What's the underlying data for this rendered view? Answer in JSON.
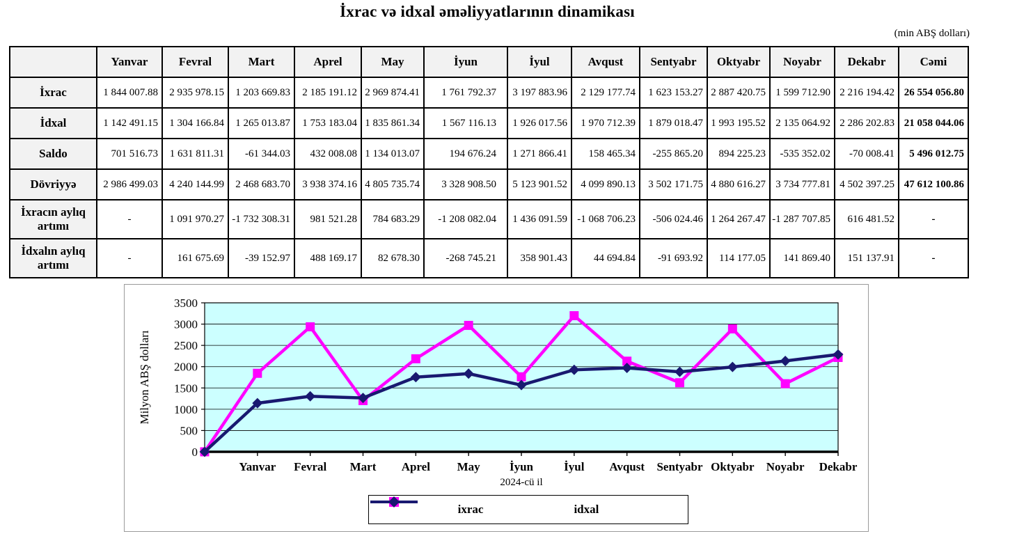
{
  "page": {
    "title": "İxrac və idxal əməliyyatlarının dinamikası",
    "unit_note": "(min ABŞ dolları)"
  },
  "table": {
    "columns": [
      "",
      "Yanvar",
      "Fevral",
      "Mart",
      "Aprel",
      "May",
      "İyun",
      "İyul",
      "Avqust",
      "Sentyabr",
      "Oktyabr",
      "Noyabr",
      "Dekabr",
      "Cəmi"
    ],
    "rows": [
      {
        "label": "İxrac",
        "values": [
          "1 844 007.88",
          "2 935 978.15",
          "1 203 669.83",
          "2 185 191.12",
          "2 969 874.41",
          "1 761 792.37",
          "3 197 883.96",
          "2 129 177.74",
          "1 623 153.27",
          "2 887 420.75",
          "1 599 712.90",
          "2 216 194.42",
          "26 554 056.80"
        ]
      },
      {
        "label": "İdxal",
        "values": [
          "1 142 491.15",
          "1 304 166.84",
          "1 265 013.87",
          "1 753 183.04",
          "1 835 861.34",
          "1 567 116.13",
          "1 926 017.56",
          "1 970 712.39",
          "1 879 018.47",
          "1 993 195.52",
          "2 135 064.92",
          "2 286 202.83",
          "21 058 044.06"
        ]
      },
      {
        "label": "Saldo",
        "values": [
          "701 516.73",
          "1 631 811.31",
          "-61 344.03",
          "432 008.08",
          "1 134 013.07",
          "194 676.24",
          "1 271 866.41",
          "158 465.34",
          "-255 865.20",
          "894 225.23",
          "-535 352.02",
          "-70 008.41",
          "5 496 012.75"
        ]
      },
      {
        "label": "Dövriyyə",
        "values": [
          "2 986 499.03",
          "4 240 144.99",
          "2 468 683.70",
          "3 938 374.16",
          "4 805 735.74",
          "3 328 908.50",
          "5 123 901.52",
          "4 099 890.13",
          "3 502 171.75",
          "4 880 616.27",
          "3 734 777.81",
          "4 502 397.25",
          "47 612 100.86"
        ]
      },
      {
        "label": "İxracın aylıq artımı",
        "tall": true,
        "values": [
          "-",
          "1 091 970.27",
          "-1 732 308.31",
          "981 521.28",
          "784 683.29",
          "-1 208 082.04",
          "1 436 091.59",
          "-1 068 706.23",
          "-506 024.46",
          "1 264 267.47",
          "-1 287 707.85",
          "616 481.52",
          "-"
        ]
      },
      {
        "label": "İdxalın aylıq artımı",
        "tall": true,
        "values": [
          "-",
          "161 675.69",
          "-39 152.97",
          "488 169.17",
          "82 678.30",
          "-268 745.21",
          "358 901.43",
          "44 694.84",
          "-91 693.92",
          "114 177.05",
          "141 869.40",
          "151 137.91",
          "-"
        ]
      }
    ]
  },
  "chart_data": {
    "type": "line",
    "title": "",
    "xlabel": "2024-cü il",
    "ylabel": "Milyon ABŞ dolları",
    "ylim": [
      0,
      3500
    ],
    "ytick_step": 500,
    "grid": true,
    "plot_bg": "#ccffff",
    "legend_position": "bottom",
    "categories": [
      "",
      "Yanvar",
      "Fevral",
      "Mart",
      "Aprel",
      "May",
      "İyun",
      "İyul",
      "Avqust",
      "Sentyabr",
      "Oktyabr",
      "Noyabr",
      "Dekabr"
    ],
    "series": [
      {
        "name": "ixrac",
        "color": "#ff00ff",
        "marker": "square",
        "values": [
          0,
          1844.0,
          2936.0,
          1203.7,
          2185.2,
          2969.9,
          1761.8,
          3197.9,
          2129.2,
          1623.2,
          2887.4,
          1599.7,
          2216.2
        ]
      },
      {
        "name": "idxal",
        "color": "#191970",
        "marker": "diamond",
        "values": [
          0,
          1142.5,
          1304.2,
          1265.0,
          1753.2,
          1835.9,
          1567.1,
          1926.0,
          1970.7,
          1879.0,
          1993.2,
          2135.1,
          2286.2
        ]
      }
    ]
  }
}
